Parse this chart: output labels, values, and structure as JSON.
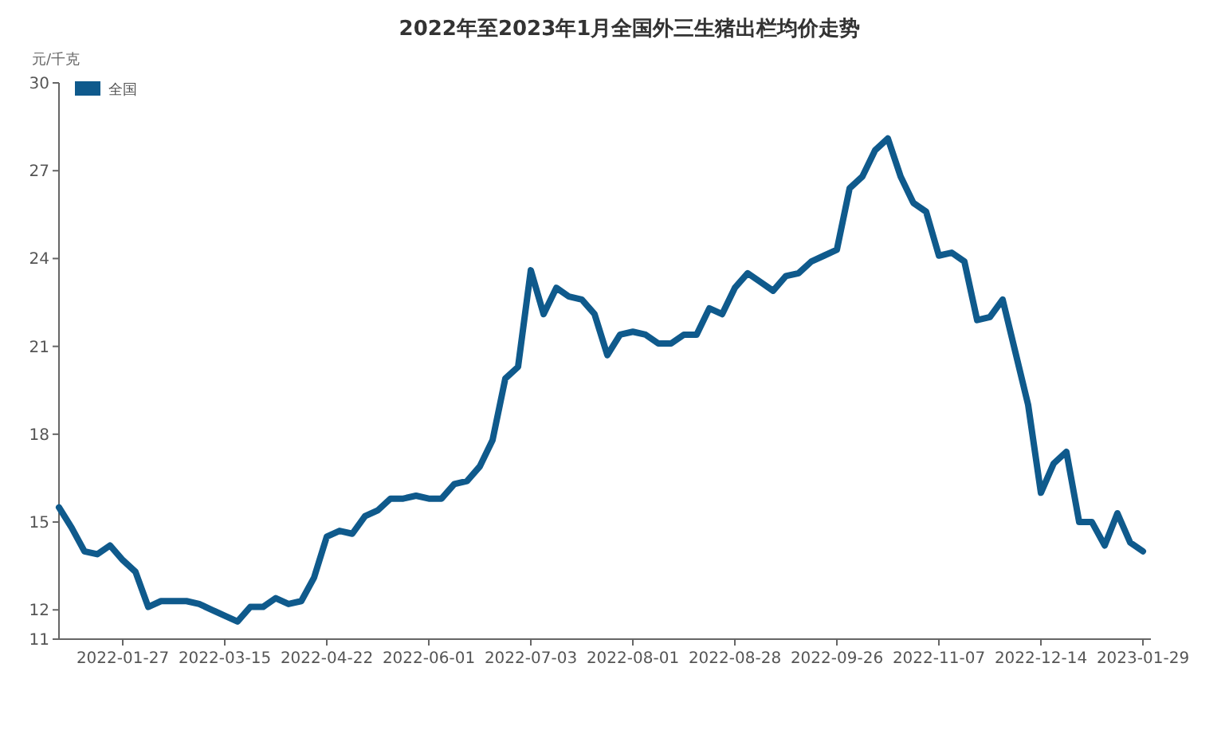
{
  "chart_data": {
    "type": "line",
    "title": "2022年至2023年1月全国外三生猪出栏均价走势",
    "ylabel": "元/千克",
    "categories": [
      null,
      null,
      null,
      null,
      null,
      "2022-01-27",
      null,
      null,
      null,
      null,
      null,
      null,
      null,
      "2022-03-15",
      null,
      null,
      null,
      null,
      null,
      null,
      null,
      "2022-04-22",
      null,
      null,
      null,
      null,
      null,
      null,
      null,
      "2022-06-01",
      null,
      null,
      null,
      null,
      null,
      null,
      null,
      "2022-07-03",
      null,
      null,
      null,
      null,
      null,
      null,
      null,
      "2022-08-01",
      null,
      null,
      null,
      null,
      null,
      null,
      null,
      "2022-08-28",
      null,
      null,
      null,
      null,
      null,
      null,
      null,
      "2022-09-26",
      null,
      null,
      null,
      null,
      null,
      null,
      null,
      "2022-11-07",
      null,
      null,
      null,
      null,
      null,
      null,
      null,
      "2022-12-14",
      null,
      null,
      null,
      null,
      null,
      null,
      null,
      "2023-01-29"
    ],
    "series": [
      {
        "name": "全国",
        "color": "#0f5a8c",
        "values": [
          15.5,
          14.8,
          14.0,
          13.9,
          14.2,
          13.7,
          13.3,
          12.1,
          12.3,
          12.3,
          12.3,
          12.2,
          12.0,
          11.8,
          11.6,
          12.1,
          12.1,
          12.4,
          12.2,
          12.3,
          13.1,
          14.5,
          14.7,
          14.6,
          15.2,
          15.4,
          15.8,
          15.8,
          15.9,
          15.8,
          15.8,
          16.3,
          16.4,
          16.9,
          17.8,
          19.9,
          20.3,
          23.6,
          22.1,
          23.0,
          22.7,
          22.6,
          22.1,
          20.7,
          21.4,
          21.5,
          21.4,
          21.1,
          21.1,
          21.4,
          21.4,
          22.3,
          22.1,
          23.0,
          23.5,
          23.2,
          22.9,
          23.4,
          23.5,
          23.9,
          24.1,
          24.3,
          26.4,
          26.8,
          27.7,
          28.1,
          26.8,
          25.9,
          25.6,
          24.1,
          24.2,
          23.9,
          21.9,
          22.0,
          22.6,
          20.8,
          19.0,
          16.0,
          17.0,
          17.4,
          15.0,
          15.0,
          14.2,
          15.3,
          14.3,
          14.0
        ]
      }
    ],
    "ylim": [
      11,
      30
    ],
    "yticks": [
      11,
      12,
      15,
      18,
      21,
      24,
      27,
      30
    ],
    "grid": false,
    "legend": "top left",
    "marker": "none",
    "line_style": "solid"
  }
}
